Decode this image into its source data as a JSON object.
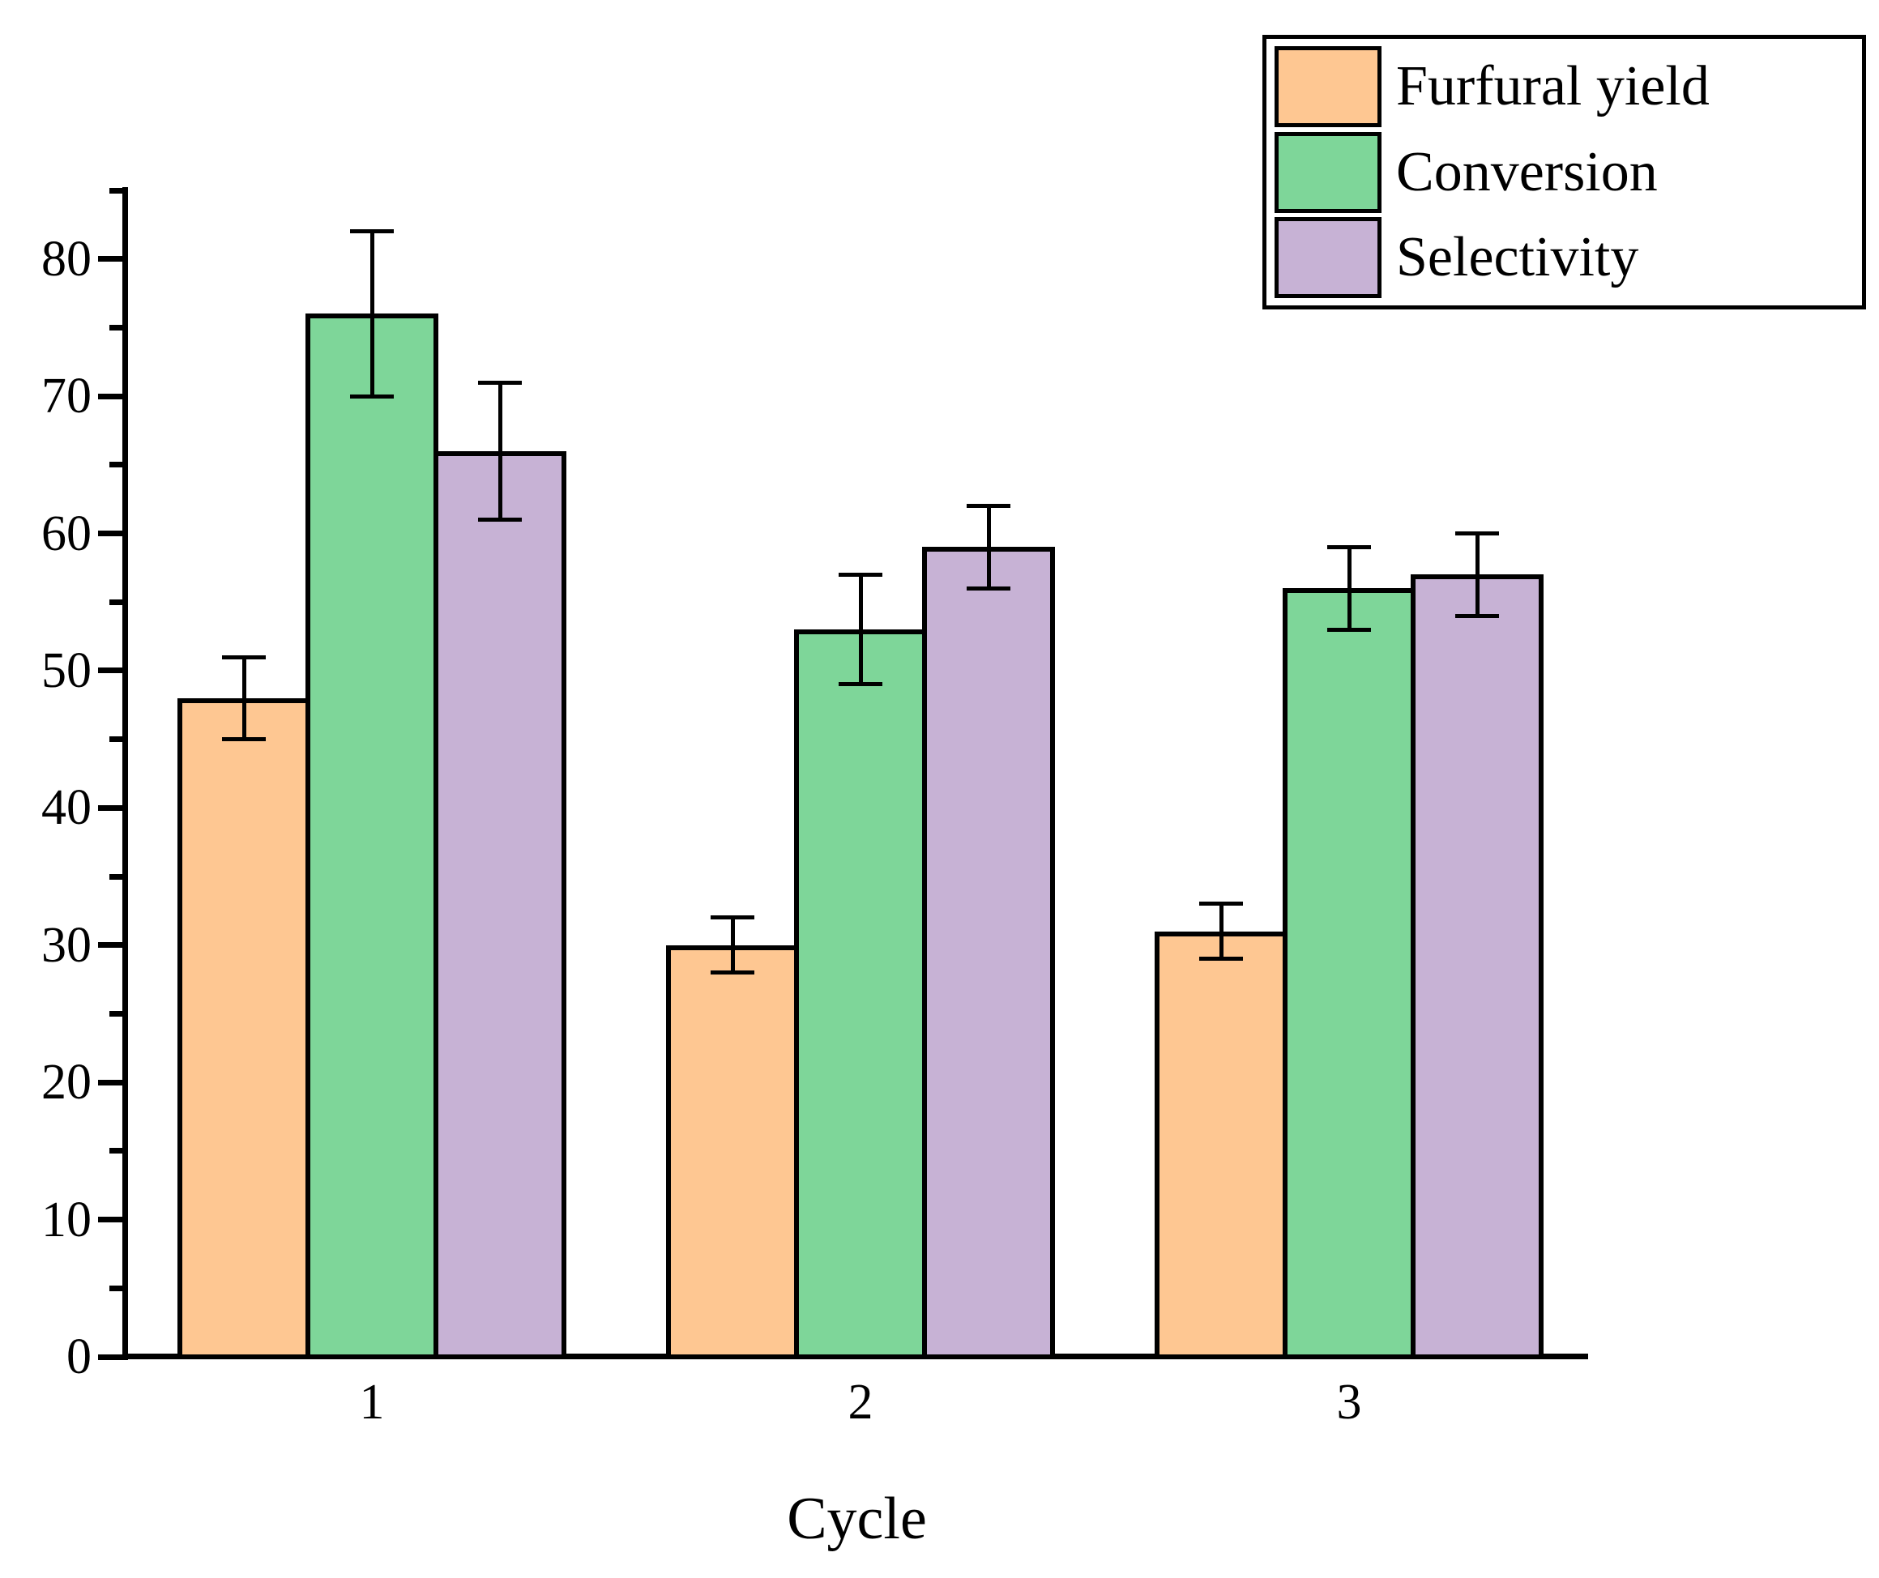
{
  "chart_data": {
    "type": "bar",
    "title": "",
    "xlabel": "Cycle",
    "ylabel": "",
    "categories": [
      "1",
      "2",
      "3"
    ],
    "series": [
      {
        "name": "Furfural yield",
        "color": "#FEC792",
        "values": [
          48,
          30,
          31
        ],
        "errors": [
          3,
          2,
          2
        ]
      },
      {
        "name": "Conversion",
        "color": "#7ED699",
        "values": [
          76,
          53,
          56
        ],
        "errors": [
          6,
          4,
          3
        ]
      },
      {
        "name": "Selectivity",
        "color": "#C7B2D5",
        "values": [
          66,
          59,
          57
        ],
        "errors": [
          5,
          3,
          3
        ]
      }
    ],
    "ylim": [
      0,
      85
    ],
    "ytick_major_step": 10,
    "ytick_minor_step": 5,
    "ytick_labels": [
      "0",
      "10",
      "20",
      "30",
      "40",
      "50",
      "60",
      "70",
      "80"
    ],
    "grid": false,
    "legend": {
      "position": "top-right",
      "items": [
        "Furfural yield",
        "Conversion",
        "Selectivity"
      ]
    },
    "colors": {
      "axis": "#000000",
      "bar_edge": "#000000",
      "error_bar": "#000000",
      "background": "#ffffff"
    }
  }
}
